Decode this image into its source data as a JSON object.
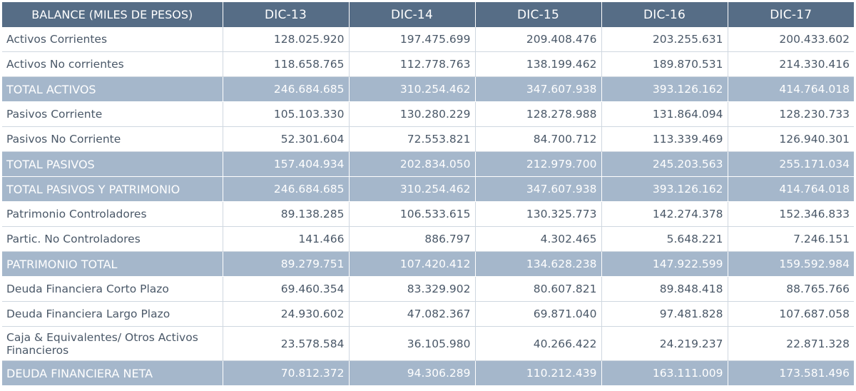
{
  "table": {
    "headers": [
      "BALANCE (MILES DE PESOS)",
      "DIC-13",
      "DIC-14",
      "DIC-15",
      "DIC-16",
      "DIC-17"
    ],
    "rows": [
      {
        "label": "Activos Corrientes",
        "total": false,
        "values": [
          "128.025.920",
          "197.475.699",
          "209.408.476",
          "203.255.631",
          "200.433.602"
        ]
      },
      {
        "label": "Activos No corrientes",
        "total": false,
        "values": [
          "118.658.765",
          "112.778.763",
          "138.199.462",
          "189.870.531",
          "214.330.416"
        ]
      },
      {
        "label": "TOTAL ACTIVOS",
        "total": true,
        "values": [
          "246.684.685",
          "310.254.462",
          "347.607.938",
          "393.126.162",
          "414.764.018"
        ]
      },
      {
        "label": "Pasivos Corriente",
        "total": false,
        "values": [
          "105.103.330",
          "130.280.229",
          "128.278.988",
          "131.864.094",
          "128.230.733"
        ]
      },
      {
        "label": "Pasivos No Corriente",
        "total": false,
        "values": [
          "52.301.604",
          "72.553.821",
          "84.700.712",
          "113.339.469",
          "126.940.301"
        ]
      },
      {
        "label": "TOTAL PASIVOS",
        "total": true,
        "values": [
          "157.404.934",
          "202.834.050",
          "212.979.700",
          "245.203.563",
          "255.171.034"
        ]
      },
      {
        "label": "TOTAL PASIVOS Y PATRIMONIO",
        "total": true,
        "values": [
          "246.684.685",
          "310.254.462",
          "347.607.938",
          "393.126.162",
          "414.764.018"
        ]
      },
      {
        "label": "Patrimonio Controladores",
        "total": false,
        "values": [
          "89.138.285",
          "106.533.615",
          "130.325.773",
          "142.274.378",
          "152.346.833"
        ]
      },
      {
        "label": "Partic.  No Controladores",
        "total": false,
        "values": [
          "141.466",
          "886.797",
          "4.302.465",
          "5.648.221",
          "7.246.151"
        ]
      },
      {
        "label": "PATRIMONIO TOTAL",
        "total": true,
        "values": [
          "89.279.751",
          "107.420.412",
          "134.628.238",
          "147.922.599",
          "159.592.984"
        ]
      },
      {
        "label": "Deuda Financiera Corto Plazo",
        "total": false,
        "values": [
          "69.460.354",
          "83.329.902",
          "80.607.821",
          "89.848.418",
          "88.765.766"
        ]
      },
      {
        "label": "Deuda Financiera Largo Plazo",
        "total": false,
        "values": [
          "24.930.602",
          "47.082.367",
          "69.871.040",
          "97.481.828",
          "107.687.058"
        ]
      },
      {
        "label": "Caja & Equivalentes/ Otros Activos Financieros",
        "total": false,
        "values": [
          "23.578.584",
          "36.105.980",
          "40.266.422",
          "24.219.237",
          "22.871.328"
        ]
      },
      {
        "label": "DEUDA FINANCIERA NETA",
        "total": true,
        "values": [
          "70.812.372",
          "94.306.289",
          "110.212.439",
          "163.111.009",
          "173.581.496"
        ]
      }
    ]
  },
  "colors": {
    "header_bg": "#566d86",
    "total_row_bg": "#a5b7cb",
    "body_text": "#4a5868",
    "grid_line": "#cfd7e0"
  }
}
